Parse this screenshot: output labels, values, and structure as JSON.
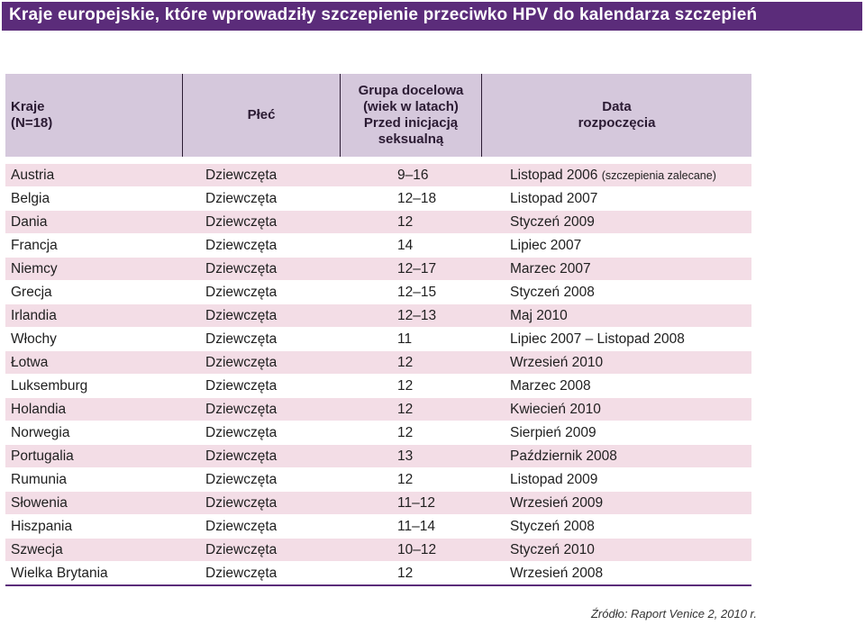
{
  "title": "Kraje europejskie, które wprowadziły szczepienie przeciwko HPV do kalendarza szczepień",
  "headers": {
    "country": [
      "Kraje",
      "(N=18)"
    ],
    "sex": [
      "Płeć"
    ],
    "age": [
      "Grupa docelowa",
      "(wiek w latach)",
      "Przed inicjacją",
      "seksualną"
    ],
    "date": [
      "Data",
      "rozpoczęcia"
    ]
  },
  "rows": [
    {
      "country": "Austria",
      "sex": "Dziewczęta",
      "age": "9–16",
      "date": "Listopad 2006",
      "note": "(szczepienia zalecane)"
    },
    {
      "country": "Belgia",
      "sex": "Dziewczęta",
      "age": "12–18",
      "date": "Listopad 2007"
    },
    {
      "country": "Dania",
      "sex": "Dziewczęta",
      "age": "12",
      "date": "Styczeń 2009"
    },
    {
      "country": "Francja",
      "sex": "Dziewczęta",
      "age": "14",
      "date": "Lipiec 2007"
    },
    {
      "country": "Niemcy",
      "sex": "Dziewczęta",
      "age": "12–17",
      "date": "Marzec 2007"
    },
    {
      "country": "Grecja",
      "sex": "Dziewczęta",
      "age": "12–15",
      "date": "Styczeń 2008"
    },
    {
      "country": "Irlandia",
      "sex": "Dziewczęta",
      "age": "12–13",
      "date": "Maj 2010"
    },
    {
      "country": "Włochy",
      "sex": "Dziewczęta",
      "age": "11",
      "date": "Lipiec 2007 – Listopad 2008"
    },
    {
      "country": "Łotwa",
      "sex": "Dziewczęta",
      "age": "12",
      "date": "Wrzesień 2010"
    },
    {
      "country": "Luksemburg",
      "sex": "Dziewczęta",
      "age": "12",
      "date": "Marzec 2008"
    },
    {
      "country": "Holandia",
      "sex": "Dziewczęta",
      "age": "12",
      "date": "Kwiecień 2010"
    },
    {
      "country": "Norwegia",
      "sex": "Dziewczęta",
      "age": "12",
      "date": "Sierpień 2009"
    },
    {
      "country": "Portugalia",
      "sex": "Dziewczęta",
      "age": "13",
      "date": "Październik 2008"
    },
    {
      "country": "Rumunia",
      "sex": "Dziewczęta",
      "age": "12",
      "date": "Listopad 2009"
    },
    {
      "country": "Słowenia",
      "sex": "Dziewczęta",
      "age": "11–12",
      "date": "Wrzesień 2009"
    },
    {
      "country": "Hiszpania",
      "sex": "Dziewczęta",
      "age": "11–14",
      "date": "Styczeń 2008"
    },
    {
      "country": "Szwecja",
      "sex": "Dziewczęta",
      "age": "10–12",
      "date": "Styczeń 2010"
    },
    {
      "country": "Wielka Brytania",
      "sex": "Dziewczęta",
      "age": "12",
      "date": "Wrzesień 2008"
    }
  ],
  "source": "Źródło: Raport Venice 2, 2010 r.",
  "colors": {
    "title_background": "#5b2c7a",
    "header_background": "#d5c8dc",
    "row_stripe": "#f3dde6"
  }
}
